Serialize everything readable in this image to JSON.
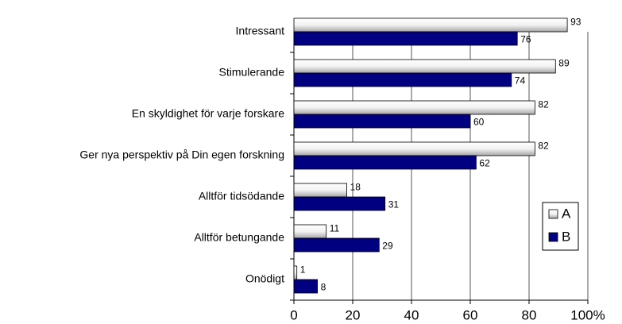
{
  "chart_data": {
    "type": "bar",
    "orientation": "horizontal",
    "categories": [
      "Intressant",
      "Stimulerande",
      "En skyldighet för varje forskare",
      "Ger nya perspektiv på Din egen forskning",
      "Alltför tidsödande",
      "Alltför betungande",
      "Onödigt"
    ],
    "series": [
      {
        "name": "A",
        "color": "#d9d9d9",
        "values": [
          93,
          89,
          82,
          82,
          18,
          11,
          1
        ]
      },
      {
        "name": "B",
        "color": "#000080",
        "values": [
          76,
          74,
          60,
          62,
          31,
          29,
          8
        ]
      }
    ],
    "xlim": [
      0,
      100
    ],
    "xticks": [
      0,
      20,
      40,
      60,
      80,
      {
        "value": 100,
        "label": "100%"
      }
    ],
    "grid": true,
    "legend": "right"
  }
}
